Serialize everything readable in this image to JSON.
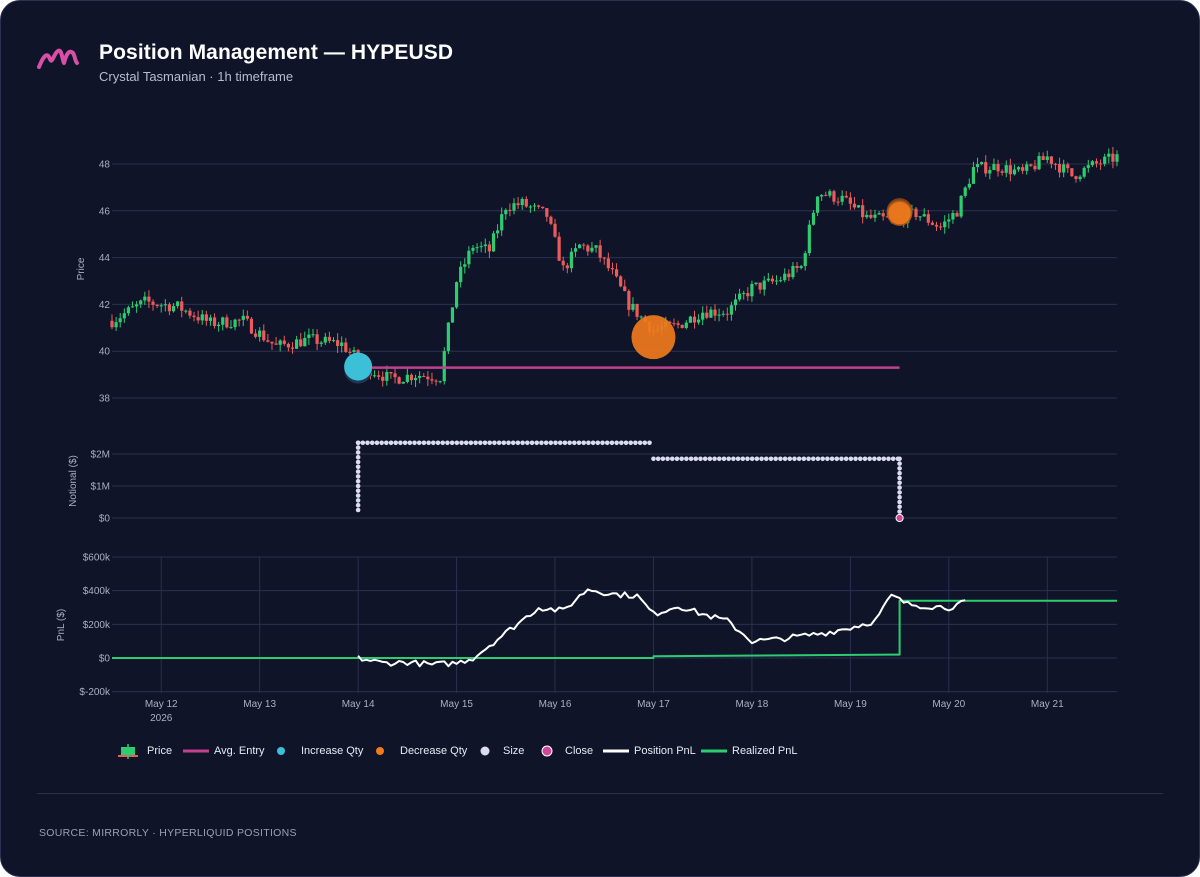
{
  "header": {
    "title": "Position Management — HYPEUSD",
    "subtitle": "Crystal Tasmanian · 1h timeframe",
    "logo_icon": "mirrorly-logo"
  },
  "footer": {
    "source": "SOURCE: MIRRORLY · HYPERLIQUID POSITIONS"
  },
  "colors": {
    "background": "#0f1429",
    "grid": "#2a3050",
    "candle_up": "#2ecc71",
    "candle_down": "#ec5b5b",
    "avg_entry": "#c2418f",
    "increase": "#3cc0d8",
    "decrease": "#f07a1c",
    "size": "#dcdbef",
    "close": "#d2469a",
    "position_pnl": "#ffffff",
    "realized_pnl": "#2ecc71"
  },
  "chart_data": [
    {
      "type": "candlestick",
      "panel": "price",
      "ylabel": "Price",
      "ylim": [
        37,
        50
      ],
      "yticks": [
        "38",
        "40",
        "42",
        "44",
        "46",
        "48"
      ],
      "grid": true,
      "close_path": [
        {
          "x": "2026-05-11T12:00",
          "y": 41.3
        },
        {
          "x": "2026-05-11T20:00",
          "y": 42.1
        },
        {
          "x": "2026-05-12T04:00",
          "y": 41.9
        },
        {
          "x": "2026-05-12T12:00",
          "y": 41.2
        },
        {
          "x": "2026-05-12T20:00",
          "y": 41.3
        },
        {
          "x": "2026-05-13T04:00",
          "y": 40.2
        },
        {
          "x": "2026-05-13T12:00",
          "y": 40.5
        },
        {
          "x": "2026-05-13T20:00",
          "y": 40.3
        },
        {
          "x": "2026-05-14T02:00",
          "y": 39.3
        },
        {
          "x": "2026-05-14T08:00",
          "y": 38.8
        },
        {
          "x": "2026-05-14T14:00",
          "y": 39.0
        },
        {
          "x": "2026-05-14T20:00",
          "y": 38.9
        },
        {
          "x": "2026-05-15T00:00",
          "y": 43.0
        },
        {
          "x": "2026-05-15T04:00",
          "y": 44.5
        },
        {
          "x": "2026-05-15T08:00",
          "y": 44.3
        },
        {
          "x": "2026-05-15T12:00",
          "y": 46.2
        },
        {
          "x": "2026-05-15T16:00",
          "y": 46.3
        },
        {
          "x": "2026-05-15T22:00",
          "y": 45.8
        },
        {
          "x": "2026-05-16T02:00",
          "y": 43.5
        },
        {
          "x": "2026-05-16T06:00",
          "y": 44.5
        },
        {
          "x": "2026-05-16T10:00",
          "y": 44.3
        },
        {
          "x": "2026-05-16T14:00",
          "y": 43.3
        },
        {
          "x": "2026-05-16T18:00",
          "y": 42.0
        },
        {
          "x": "2026-05-17T00:00",
          "y": 40.9
        },
        {
          "x": "2026-05-17T06:00",
          "y": 41.1
        },
        {
          "x": "2026-05-17T12:00",
          "y": 41.7
        },
        {
          "x": "2026-05-17T18:00",
          "y": 41.7
        },
        {
          "x": "2026-05-18T00:00",
          "y": 42.7
        },
        {
          "x": "2026-05-18T06:00",
          "y": 43.0
        },
        {
          "x": "2026-05-18T12:00",
          "y": 43.6
        },
        {
          "x": "2026-05-18T16:00",
          "y": 46.8
        },
        {
          "x": "2026-05-18T22:00",
          "y": 46.5
        },
        {
          "x": "2026-05-19T04:00",
          "y": 45.7
        },
        {
          "x": "2026-05-19T10:00",
          "y": 45.6
        },
        {
          "x": "2026-05-19T16:00",
          "y": 45.9
        },
        {
          "x": "2026-05-19T22:00",
          "y": 45.3
        },
        {
          "x": "2026-05-20T02:00",
          "y": 46.0
        },
        {
          "x": "2026-05-20T06:00",
          "y": 47.8
        },
        {
          "x": "2026-05-20T12:00",
          "y": 47.9
        },
        {
          "x": "2026-05-20T18:00",
          "y": 47.6
        },
        {
          "x": "2026-05-21T00:00",
          "y": 48.3
        },
        {
          "x": "2026-05-21T06:00",
          "y": 47.5
        },
        {
          "x": "2026-05-21T12:00",
          "y": 48.0
        },
        {
          "x": "2026-05-21T17:00",
          "y": 48.3
        }
      ],
      "avg_entry": {
        "x0": "2026-05-14T00:00",
        "x1": "2026-05-19T12:00",
        "y": 39.3
      },
      "increase_markers": [
        {
          "x": "2026-05-14T00:00",
          "y": 39.3
        }
      ],
      "decrease_markers": [
        {
          "x": "2026-05-17T00:00",
          "y": 40.6
        },
        {
          "x": "2026-05-19T12:00",
          "y": 45.9
        }
      ]
    },
    {
      "type": "scatter",
      "panel": "notional",
      "ylabel": "Notional ($)",
      "yticks": [
        "$0",
        "$1M",
        "$2M"
      ],
      "ylim": [
        -0.3,
        2.6
      ],
      "size_segments": [
        {
          "x0": "2026-05-14T00:00",
          "x1": "2026-05-17T00:00",
          "y": 2.35
        },
        {
          "x0": "2026-05-17T00:00",
          "x1": "2026-05-19T12:00",
          "y": 1.85
        }
      ],
      "close_marker": {
        "x": "2026-05-19T12:00",
        "y": 0
      }
    },
    {
      "type": "line",
      "panel": "pnl",
      "ylabel": "PnL ($)",
      "yticks": [
        "$-200k",
        "$0",
        "$200k",
        "$400k",
        "$600k"
      ],
      "ylim": [
        -200,
        600
      ],
      "x_ticks": [
        "May 12",
        "May 13",
        "May 14",
        "May 15",
        "May 16",
        "May 17",
        "May 18",
        "May 19",
        "May 20",
        "May 21"
      ],
      "x_year_label": "2026",
      "series": [
        {
          "name": "Position PnL",
          "points": [
            {
              "x": "2026-05-14T00:00",
              "y": 0
            },
            {
              "x": "2026-05-14T06:00",
              "y": -30
            },
            {
              "x": "2026-05-14T12:00",
              "y": -25
            },
            {
              "x": "2026-05-14T18:00",
              "y": -40
            },
            {
              "x": "2026-05-15T00:00",
              "y": -30
            },
            {
              "x": "2026-05-15T04:00",
              "y": 0
            },
            {
              "x": "2026-05-15T12:00",
              "y": 150
            },
            {
              "x": "2026-05-15T20:00",
              "y": 300
            },
            {
              "x": "2026-05-16T02:00",
              "y": 280
            },
            {
              "x": "2026-05-16T08:00",
              "y": 410
            },
            {
              "x": "2026-05-16T14:00",
              "y": 380
            },
            {
              "x": "2026-05-16T20:00",
              "y": 370
            },
            {
              "x": "2026-05-17T00:00",
              "y": 260
            },
            {
              "x": "2026-05-17T06:00",
              "y": 310
            },
            {
              "x": "2026-05-17T12:00",
              "y": 260
            },
            {
              "x": "2026-05-17T18:00",
              "y": 220
            },
            {
              "x": "2026-05-18T00:00",
              "y": 100
            },
            {
              "x": "2026-05-18T06:00",
              "y": 110
            },
            {
              "x": "2026-05-18T12:00",
              "y": 130
            },
            {
              "x": "2026-05-18T18:00",
              "y": 150
            },
            {
              "x": "2026-05-19T00:00",
              "y": 180
            },
            {
              "x": "2026-05-19T06:00",
              "y": 220
            },
            {
              "x": "2026-05-19T10:00",
              "y": 370
            },
            {
              "x": "2026-05-19T14:00",
              "y": 320
            },
            {
              "x": "2026-05-19T18:00",
              "y": 310
            },
            {
              "x": "2026-05-20T00:00",
              "y": 300
            },
            {
              "x": "2026-05-20T04:00",
              "y": 330
            }
          ]
        },
        {
          "name": "Realized PnL",
          "points": [
            {
              "x": "2026-05-11T12:00",
              "y": 0
            },
            {
              "x": "2026-05-17T00:00",
              "y": 0
            },
            {
              "x": "2026-05-17T00:00",
              "y": 10
            },
            {
              "x": "2026-05-19T12:00",
              "y": 20
            },
            {
              "x": "2026-05-19T12:00",
              "y": 340
            },
            {
              "x": "2026-05-21T17:00",
              "y": 340
            }
          ]
        }
      ]
    }
  ],
  "legend": {
    "price": "Price",
    "avg_entry": "Avg. Entry",
    "increase": "Increase Qty",
    "decrease": "Decrease Qty",
    "size": "Size",
    "close": "Close",
    "position_pnl": "Position PnL",
    "realized_pnl": "Realized PnL"
  }
}
